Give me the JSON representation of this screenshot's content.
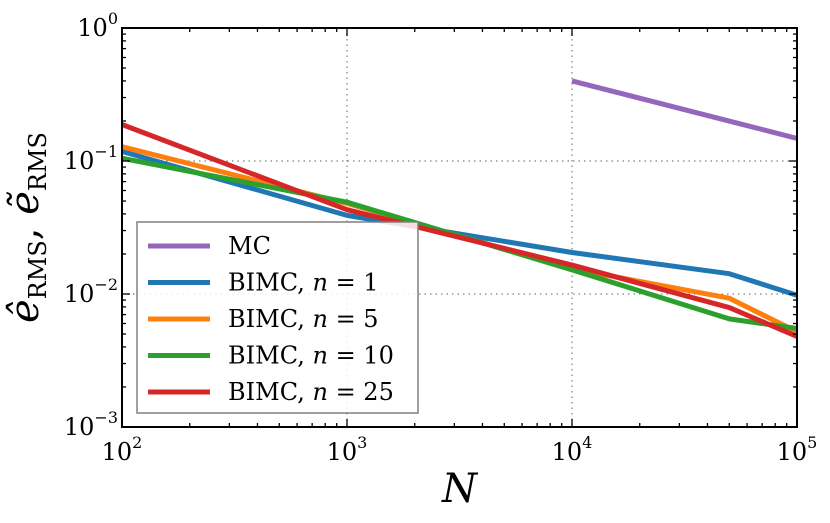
{
  "chart_data": {
    "type": "line",
    "xscale": "log",
    "yscale": "log",
    "xlim": [
      100,
      100000
    ],
    "ylim": [
      0.001,
      1
    ],
    "grid": true,
    "legend_position": "lower-left",
    "xlabel": "N",
    "ylabel": "ê_RMS, ẽ_RMS",
    "ylabel_parts": {
      "first_base": "ê",
      "first_sub": "RMS",
      "separator": ", ",
      "second_base": "ẽ",
      "second_sub": "RMS"
    },
    "x_ticks": [
      {
        "value": 100,
        "base": "10",
        "exp": "2"
      },
      {
        "value": 1000,
        "base": "10",
        "exp": "3"
      },
      {
        "value": 10000,
        "base": "10",
        "exp": "4"
      },
      {
        "value": 100000,
        "base": "10",
        "exp": "5"
      }
    ],
    "y_ticks": [
      {
        "value": 0.001,
        "base": "10",
        "exp": "−3"
      },
      {
        "value": 0.01,
        "base": "10",
        "exp": "−2"
      },
      {
        "value": 0.1,
        "base": "10",
        "exp": "−1"
      },
      {
        "value": 1,
        "base": "10",
        "exp": "0"
      }
    ],
    "series": [
      {
        "name": "MC",
        "legend_prefix": "MC",
        "legend_var": "",
        "legend_value": "",
        "color": "#9467bd",
        "x": [
          10000,
          100000
        ],
        "y": [
          0.4,
          0.148
        ]
      },
      {
        "name": "BIMC, n = 1",
        "legend_prefix": "BIMC, ",
        "legend_var": "n",
        "legend_value": " = 1",
        "color": "#1f77b4",
        "x": [
          100,
          1000,
          10000,
          50000,
          100000
        ],
        "y": [
          0.118,
          0.039,
          0.0205,
          0.0142,
          0.0098
        ]
      },
      {
        "name": "BIMC, n = 5",
        "legend_prefix": "BIMC, ",
        "legend_var": "n",
        "legend_value": " = 5",
        "color": "#ff7f0e",
        "x": [
          100,
          1000,
          10000,
          50000,
          100000
        ],
        "y": [
          0.128,
          0.048,
          0.0155,
          0.0093,
          0.0052
        ]
      },
      {
        "name": "BIMC, n = 10",
        "legend_prefix": "BIMC, ",
        "legend_var": "n",
        "legend_value": " = 10",
        "color": "#2ca02c",
        "x": [
          100,
          1000,
          10000,
          50000,
          100000
        ],
        "y": [
          0.105,
          0.049,
          0.0152,
          0.0065,
          0.0055
        ]
      },
      {
        "name": "BIMC, n = 25",
        "legend_prefix": "BIMC, ",
        "legend_var": "n",
        "legend_value": " = 25",
        "color": "#d62728",
        "x": [
          100,
          1000,
          10000,
          50000,
          100000
        ],
        "y": [
          0.188,
          0.043,
          0.0165,
          0.0079,
          0.0048
        ]
      }
    ]
  }
}
